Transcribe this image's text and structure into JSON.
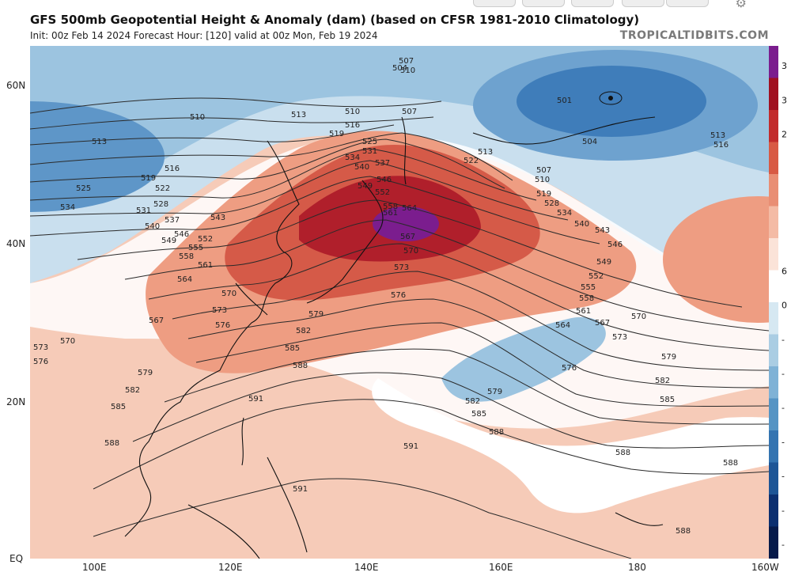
{
  "header": {
    "title": "GFS 500mb Geopotential Height & Anomaly (dam) (based on CFSR 1981-2010 Climatology)",
    "subtitle": "Init: 00z Feb 14 2024   Forecast Hour: [120]   valid at 00z Mon, Feb 19 2024",
    "brand": "TROPICALTIDBITS.COM"
  },
  "axes": {
    "lon_labels": [
      "100E",
      "120E",
      "140E",
      "160E",
      "180",
      "160W"
    ],
    "lat_labels": [
      "60N",
      "40N",
      "20N",
      "EQ"
    ]
  },
  "colorbar": {
    "labels": [
      "3",
      "3",
      "2",
      "",
      "",
      "",
      "6",
      "0",
      "-",
      "-",
      "-",
      "-",
      "-",
      "-",
      "-"
    ],
    "colors": [
      "#7b1d8e",
      "#a01020",
      "#c22b2b",
      "#d85a44",
      "#e98e74",
      "#f4bba5",
      "#fbe3d8",
      "#ffffff",
      "#d6e8f2",
      "#aacde3",
      "#7fb2d6",
      "#5594c4",
      "#3474b1",
      "#1d5596",
      "#0b2f70",
      "#061a4a"
    ]
  },
  "height_contour_labels_dam": [
    "501",
    "504",
    "507",
    "510",
    "513",
    "516",
    "519",
    "522",
    "525",
    "528",
    "531",
    "534",
    "537",
    "540",
    "543",
    "546",
    "549",
    "552",
    "555",
    "558",
    "561",
    "564",
    "567",
    "570",
    "573",
    "576",
    "579",
    "582",
    "585",
    "588",
    "591"
  ]
}
